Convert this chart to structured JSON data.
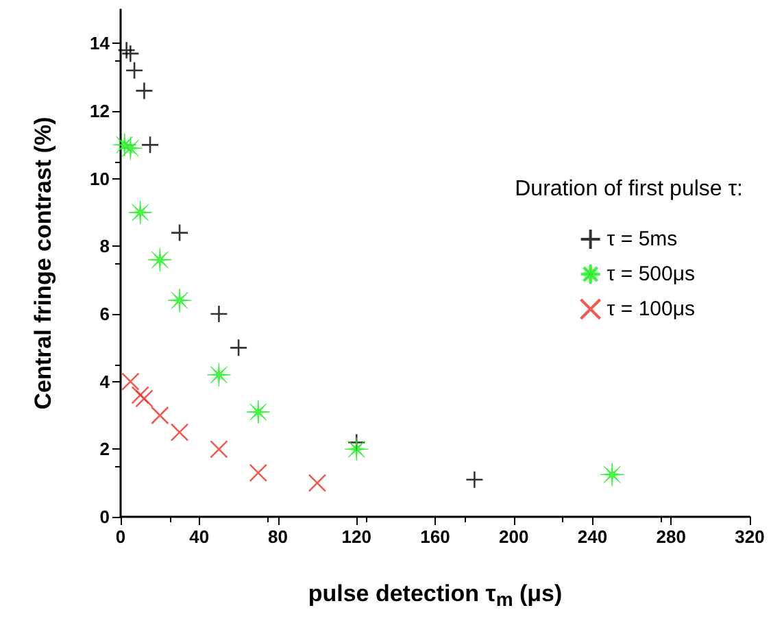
{
  "chart_data": {
    "type": "scatter",
    "xlabel": "pulse detection τ$_{m}$ (μs)",
    "ylabel": "Central fringe contrast (%)",
    "legend_title": "Duration of first pulse τ:",
    "xlim": [
      0,
      320
    ],
    "xticks": [
      0,
      40,
      80,
      120,
      160,
      200,
      240,
      280,
      320
    ],
    "ylim": [
      0,
      15
    ],
    "yticks": [
      0,
      2,
      4,
      6,
      8,
      10,
      12,
      14
    ],
    "grid": false,
    "legend": "right",
    "series": [
      {
        "name": "τ = 5ms",
        "color": "#000000",
        "marker": "cross",
        "x": [
          3,
          5,
          7,
          12,
          15,
          30,
          50,
          60,
          120,
          180
        ],
        "values": [
          13.8,
          13.7,
          13.2,
          12.6,
          11,
          8.4,
          6,
          5,
          2.2,
          1.1
        ]
      },
      {
        "name": "τ = 500μs",
        "color": "#22ee22",
        "marker": "star",
        "x": [
          2,
          5,
          10,
          20,
          30,
          50,
          70,
          120,
          250
        ],
        "values": [
          11,
          10.9,
          9,
          7.6,
          6.4,
          4.2,
          3.1,
          2,
          1.25
        ]
      },
      {
        "name": "τ = 100μs",
        "color": "#e8322a",
        "marker": "x",
        "x": [
          5,
          10,
          12,
          20,
          30,
          50,
          70,
          100
        ],
        "values": [
          4,
          3.6,
          3.5,
          3,
          2.5,
          2,
          1.3,
          1
        ]
      }
    ]
  }
}
